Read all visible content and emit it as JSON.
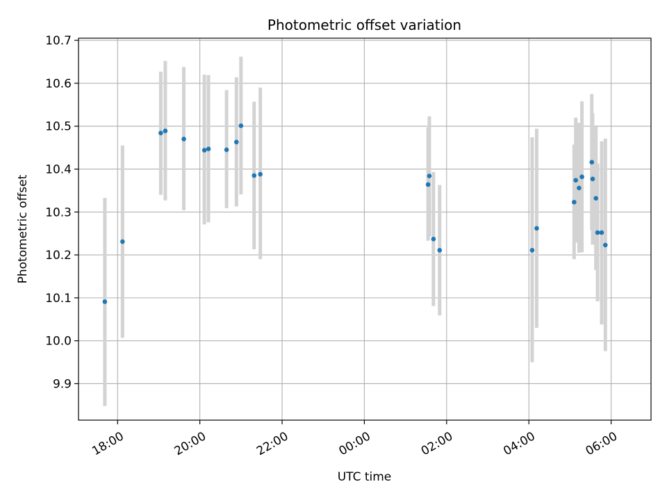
{
  "chart_data": {
    "type": "scatter",
    "title": "Photometric offset variation",
    "xlabel": "UTC time",
    "ylabel": "Photometric offset",
    "x_unit": "UTC time (hours since 00:00 of first night, negative = previous evening)",
    "xlim": [
      -6.95,
      6.97
    ],
    "ylim": [
      9.815,
      10.705
    ],
    "x_ticks": [
      {
        "value": -6,
        "label": "18:00"
      },
      {
        "value": -4,
        "label": "20:00"
      },
      {
        "value": -2,
        "label": "22:00"
      },
      {
        "value": 0,
        "label": "00:00"
      },
      {
        "value": 2,
        "label": "02:00"
      },
      {
        "value": 4,
        "label": "04:00"
      },
      {
        "value": 6,
        "label": "06:00"
      }
    ],
    "y_ticks": [
      {
        "value": 9.9,
        "label": "9.9"
      },
      {
        "value": 10.0,
        "label": "10.0"
      },
      {
        "value": 10.1,
        "label": "10.1"
      },
      {
        "value": 10.2,
        "label": "10.2"
      },
      {
        "value": 10.3,
        "label": "10.3"
      },
      {
        "value": 10.4,
        "label": "10.4"
      },
      {
        "value": 10.5,
        "label": "10.5"
      },
      {
        "value": 10.6,
        "label": "10.6"
      },
      {
        "value": 10.7,
        "label": "10.7"
      }
    ],
    "grid": true,
    "colors": {
      "point": "#1f77b4",
      "errorbar": "#d3d3d3",
      "grid": "#b0b0b0"
    },
    "series": [
      {
        "points": [
          {
            "x": -6.31,
            "y": 10.091,
            "lo": 9.848,
            "hi": 10.333
          },
          {
            "x": -5.88,
            "y": 10.231,
            "lo": 10.007,
            "hi": 10.455
          },
          {
            "x": -4.95,
            "y": 10.484,
            "lo": 10.34,
            "hi": 10.627
          },
          {
            "x": -4.84,
            "y": 10.489,
            "lo": 10.327,
            "hi": 10.652
          },
          {
            "x": -4.39,
            "y": 10.47,
            "lo": 10.304,
            "hi": 10.638
          },
          {
            "x": -3.89,
            "y": 10.444,
            "lo": 10.271,
            "hi": 10.62
          },
          {
            "x": -3.79,
            "y": 10.447,
            "lo": 10.276,
            "hi": 10.619
          },
          {
            "x": -3.35,
            "y": 10.445,
            "lo": 10.309,
            "hi": 10.584
          },
          {
            "x": -3.11,
            "y": 10.463,
            "lo": 10.313,
            "hi": 10.614
          },
          {
            "x": -3.0,
            "y": 10.501,
            "lo": 10.341,
            "hi": 10.662
          },
          {
            "x": -2.68,
            "y": 10.385,
            "lo": 10.213,
            "hi": 10.557
          },
          {
            "x": -2.53,
            "y": 10.388,
            "lo": 10.19,
            "hi": 10.59
          },
          {
            "x": 1.55,
            "y": 10.364,
            "lo": 10.233,
            "hi": 10.497
          },
          {
            "x": 1.58,
            "y": 10.384,
            "lo": 10.243,
            "hi": 10.523
          },
          {
            "x": 1.68,
            "y": 10.237,
            "lo": 10.081,
            "hi": 10.393
          },
          {
            "x": 1.83,
            "y": 10.211,
            "lo": 10.059,
            "hi": 10.363
          },
          {
            "x": 4.08,
            "y": 10.211,
            "lo": 9.95,
            "hi": 10.474
          },
          {
            "x": 4.19,
            "y": 10.262,
            "lo": 10.03,
            "hi": 10.494
          },
          {
            "x": 5.1,
            "y": 10.323,
            "lo": 10.19,
            "hi": 10.457
          },
          {
            "x": 5.14,
            "y": 10.374,
            "lo": 10.229,
            "hi": 10.52
          },
          {
            "x": 5.22,
            "y": 10.356,
            "lo": 10.205,
            "hi": 10.508
          },
          {
            "x": 5.29,
            "y": 10.382,
            "lo": 10.206,
            "hi": 10.558
          },
          {
            "x": 5.53,
            "y": 10.416,
            "lo": 10.258,
            "hi": 10.575
          },
          {
            "x": 5.55,
            "y": 10.377,
            "lo": 10.224,
            "hi": 10.53
          },
          {
            "x": 5.63,
            "y": 10.332,
            "lo": 10.165,
            "hi": 10.499
          },
          {
            "x": 5.67,
            "y": 10.252,
            "lo": 10.092,
            "hi": 10.413
          },
          {
            "x": 5.77,
            "y": 10.252,
            "lo": 10.038,
            "hi": 10.465
          },
          {
            "x": 5.86,
            "y": 10.223,
            "lo": 9.976,
            "hi": 10.471
          }
        ]
      }
    ]
  }
}
